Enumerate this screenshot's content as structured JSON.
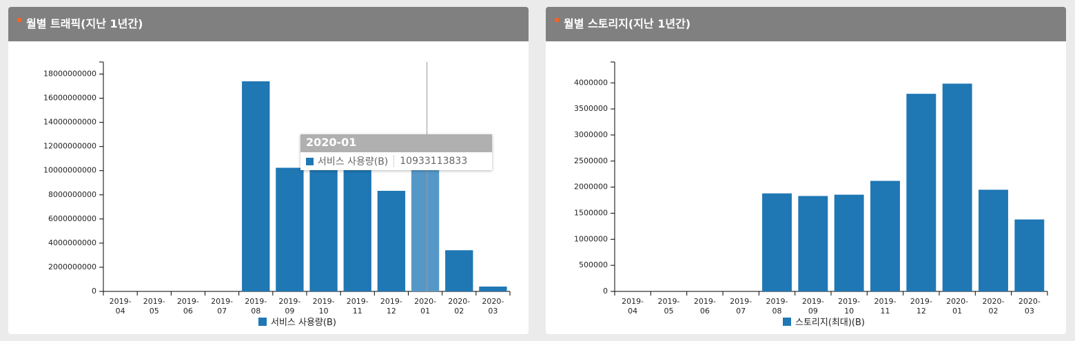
{
  "chart_data": [
    {
      "type": "bar",
      "title": "월별 트래픽(지난 1년간)",
      "categories": [
        "2019-04",
        "2019-05",
        "2019-06",
        "2019-07",
        "2019-08",
        "2019-09",
        "2019-10",
        "2019-11",
        "2019-12",
        "2020-01",
        "2020-02",
        "2020-03"
      ],
      "series": [
        {
          "name": "서비스 사용량(B)",
          "color": "#1f77b4",
          "values": [
            0,
            0,
            0,
            0,
            17400000000,
            10240000000,
            10300000000,
            10100000000,
            8330000000,
            10933113833,
            3410000000,
            400000000
          ]
        }
      ],
      "ylim": [
        0,
        19000000000
      ],
      "yticks": [
        0,
        2000000000,
        4000000000,
        6000000000,
        8000000000,
        10000000000,
        12000000000,
        14000000000,
        16000000000,
        18000000000
      ]
    },
    {
      "type": "bar",
      "title": "월별 스토리지(지난 1년간)",
      "categories": [
        "2019-04",
        "2019-05",
        "2019-06",
        "2019-07",
        "2019-08",
        "2019-09",
        "2019-10",
        "2019-11",
        "2019-12",
        "2020-01",
        "2020-02",
        "2020-03"
      ],
      "series": [
        {
          "name": "스토리지(최대)(B)",
          "color": "#1f77b4",
          "values": [
            0,
            0,
            0,
            0,
            1880000,
            1830000,
            1855000,
            2120000,
            3790000,
            3985000,
            1950000,
            1380000
          ]
        }
      ],
      "ylim": [
        0,
        4400000
      ],
      "yticks": [
        0,
        500000,
        1000000,
        1500000,
        2000000,
        2500000,
        3000000,
        3500000,
        4000000
      ]
    }
  ]
}
